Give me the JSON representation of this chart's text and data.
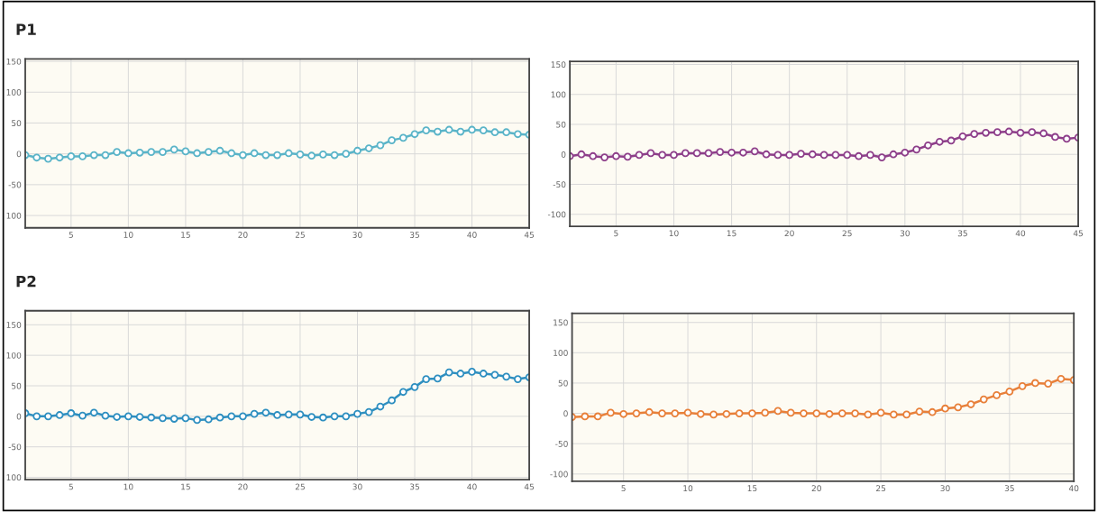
{
  "chart_data": [
    {
      "type": "line",
      "annotations": [
        "P1"
      ],
      "x": [
        1,
        2,
        3,
        4,
        5,
        6,
        7,
        8,
        9,
        10,
        11,
        12,
        13,
        14,
        15,
        16,
        17,
        18,
        19,
        20,
        21,
        22,
        23,
        24,
        25,
        26,
        27,
        28,
        29,
        30,
        31,
        32,
        33,
        34,
        35,
        36,
        37,
        38,
        39,
        40,
        41,
        42,
        43,
        44,
        45
      ],
      "series": [
        {
          "color": "#5ab4c8",
          "values": [
            -2,
            -6,
            -8,
            -6,
            -4,
            -4,
            -2,
            -2,
            3,
            1,
            2,
            3,
            3,
            7,
            4,
            1,
            3,
            5,
            1,
            -2,
            1,
            -2,
            -2,
            1,
            -1,
            -3,
            -1,
            -2,
            0,
            5,
            9,
            14,
            22,
            26,
            32,
            38,
            36,
            39,
            36,
            39,
            38,
            35,
            35,
            32,
            31
          ]
        }
      ],
      "xlim": [
        1,
        45
      ],
      "xticks": [
        5,
        10,
        15,
        20,
        25,
        30,
        35,
        40,
        45
      ],
      "ylim": [
        -120,
        154
      ],
      "yticks": [
        {
          "value": -100,
          "label": "100"
        },
        -50,
        0,
        50,
        100,
        150
      ],
      "grid": true,
      "marker": "circle",
      "line_style": "solid"
    },
    {
      "type": "line",
      "x": [
        1,
        2,
        3,
        4,
        5,
        6,
        7,
        8,
        9,
        10,
        11,
        12,
        13,
        14,
        15,
        16,
        17,
        18,
        19,
        20,
        21,
        22,
        23,
        24,
        25,
        26,
        27,
        28,
        29,
        30,
        31,
        32,
        33,
        34,
        35,
        36,
        37,
        38,
        39,
        40,
        41,
        42,
        43,
        44,
        45
      ],
      "series": [
        {
          "color": "#8e3f8a",
          "values": [
            -3,
            0,
            -3,
            -5,
            -3,
            -4,
            -1,
            2,
            -1,
            -1,
            2,
            2,
            2,
            4,
            3,
            3,
            5,
            0,
            -1,
            -1,
            1,
            0,
            -1,
            -1,
            -1,
            -3,
            -1,
            -5,
            0,
            3,
            8,
            15,
            21,
            23,
            30,
            34,
            36,
            37,
            38,
            36,
            37,
            35,
            29,
            26,
            28
          ]
        }
      ],
      "xlim": [
        1,
        45
      ],
      "xticks": [
        5,
        10,
        15,
        20,
        25,
        30,
        35,
        40,
        45
      ],
      "ylim": [
        -120,
        155
      ],
      "yticks": [
        -100,
        -50,
        0,
        50,
        100,
        150
      ],
      "grid": true,
      "marker": "circle",
      "line_style": "solid"
    },
    {
      "type": "line",
      "annotations": [
        "P2"
      ],
      "x": [
        1,
        2,
        3,
        4,
        5,
        6,
        7,
        8,
        9,
        10,
        11,
        12,
        13,
        14,
        15,
        16,
        17,
        18,
        19,
        20,
        21,
        22,
        23,
        24,
        25,
        26,
        27,
        28,
        29,
        30,
        31,
        32,
        33,
        34,
        35,
        36,
        37,
        38,
        39,
        40,
        41,
        42,
        43,
        44,
        45
      ],
      "series": [
        {
          "color": "#2e8fc0",
          "values": [
            5,
            0,
            0,
            2,
            5,
            1,
            6,
            1,
            -1,
            0,
            -1,
            -2,
            -3,
            -4,
            -3,
            -6,
            -5,
            -2,
            0,
            0,
            4,
            6,
            2,
            3,
            3,
            -1,
            -2,
            0,
            0,
            4,
            7,
            16,
            26,
            40,
            48,
            61,
            62,
            72,
            70,
            73,
            70,
            68,
            65,
            61,
            64
          ]
        }
      ],
      "xlim": [
        1,
        45
      ],
      "xticks": [
        5,
        10,
        15,
        20,
        25,
        30,
        35,
        40,
        45
      ],
      "ylim": [
        -104,
        173
      ],
      "yticks": [
        {
          "value": -100,
          "label": "100"
        },
        -50,
        0,
        50,
        100,
        150
      ],
      "grid": true,
      "marker": "circle",
      "line_style": "solid"
    },
    {
      "type": "line",
      "x": [
        1,
        2,
        3,
        4,
        5,
        6,
        7,
        8,
        9,
        10,
        11,
        12,
        13,
        14,
        15,
        16,
        17,
        18,
        19,
        20,
        21,
        22,
        23,
        24,
        25,
        26,
        27,
        28,
        29,
        30,
        31,
        32,
        33,
        34,
        35,
        36,
        37,
        38,
        39,
        40
      ],
      "series": [
        {
          "color": "#e8803a",
          "values": [
            -6,
            -5,
            -5,
            1,
            -1,
            0,
            2,
            0,
            0,
            1,
            -1,
            -2,
            -1,
            0,
            0,
            1,
            4,
            1,
            0,
            0,
            -1,
            0,
            0,
            -2,
            1,
            -2,
            -2,
            3,
            2,
            8,
            10,
            15,
            23,
            30,
            36,
            45,
            50,
            49,
            57,
            55
          ]
        }
      ],
      "xlim": [
        1,
        40
      ],
      "xticks": [
        5,
        10,
        15,
        20,
        25,
        30,
        35,
        40
      ],
      "ylim": [
        -112,
        165
      ],
      "yticks": [
        -100,
        -50,
        0,
        50,
        100,
        150
      ],
      "grid": true,
      "marker": "circle",
      "line_style": "solid"
    }
  ]
}
